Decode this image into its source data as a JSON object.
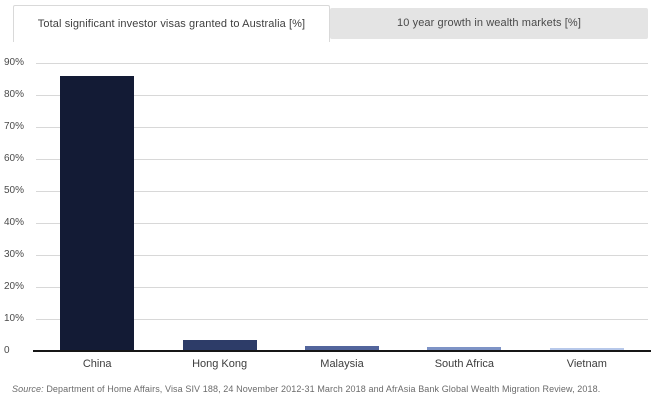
{
  "tabs": [
    {
      "label": "Total significant investor visas granted to Australia [%]",
      "active": true
    },
    {
      "label": "10 year growth in wealth markets [%]",
      "active": false
    }
  ],
  "chart_data": {
    "type": "bar",
    "title": "Total significant investor visas granted to Australia [%]",
    "categories": [
      "China",
      "Hong Kong",
      "Malaysia",
      "South Africa",
      "Vietnam"
    ],
    "values": [
      86,
      3.5,
      1.6,
      1.4,
      1.0
    ],
    "bar_colors": [
      "#131b35",
      "#2d3c68",
      "#53659c",
      "#7e93c6",
      "#b7c8ea"
    ],
    "xlabel": "",
    "ylabel": "",
    "ylim": [
      0,
      90
    ],
    "ytick_labels": [
      "90%",
      "80%",
      "70%",
      "60%",
      "50%",
      "40%",
      "30%",
      "20%",
      "10%",
      "0"
    ],
    "ytick_values": [
      90,
      80,
      70,
      60,
      50,
      40,
      30,
      20,
      10,
      0
    ],
    "grid": true,
    "legend": false
  },
  "source": {
    "label": "Source:",
    "text": "Department of Home Affairs, Visa SIV 188, 24 November 2012-31 March 2018 and AfrAsia Bank Global Wealth Migration Review, 2018."
  },
  "colors": {
    "grid": "#d8d8d8",
    "axis": "#161616",
    "tab_active_bg": "#ffffff",
    "tab_inactive_bg": "#e4e4e4",
    "tab_border": "#d9d9d9"
  }
}
